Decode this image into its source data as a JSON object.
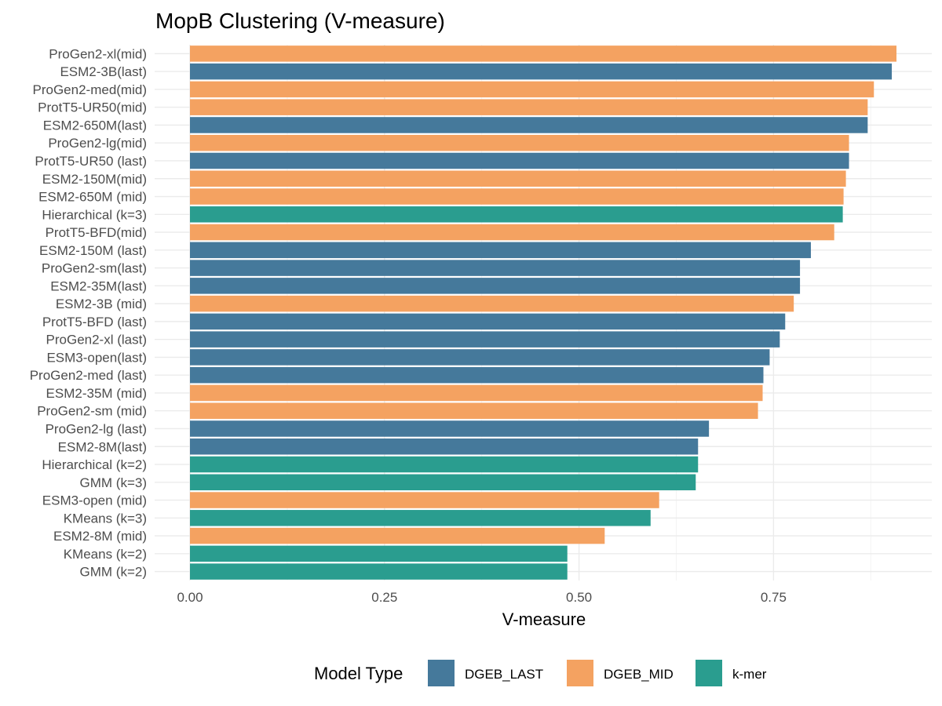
{
  "chart_data": {
    "type": "bar",
    "orientation": "horizontal",
    "title": "MopB Clustering (V-measure)",
    "xlabel": "V-measure",
    "ylabel": "",
    "xlim": [
      0,
      0.91
    ],
    "xticks": [
      0.0,
      0.25,
      0.5,
      0.75
    ],
    "xtick_labels": [
      "0.00",
      "0.25",
      "0.50",
      "0.75"
    ],
    "grid": true,
    "legend": {
      "title": "Model Type",
      "position": "bottom",
      "entries": [
        {
          "name": "DGEB_LAST",
          "color": "#45799b"
        },
        {
          "name": "DGEB_MID",
          "color": "#f4a261"
        },
        {
          "name": "k-mer",
          "color": "#2a9d8f"
        }
      ]
    },
    "bars": [
      {
        "label": "ProGen2-xl(mid)",
        "value": 0.908,
        "type": "DGEB_MID"
      },
      {
        "label": "ESM2-3B(last)",
        "value": 0.902,
        "type": "DGEB_LAST"
      },
      {
        "label": "ProGen2-med(mid)",
        "value": 0.879,
        "type": "DGEB_MID"
      },
      {
        "label": "ProtT5-UR50(mid)",
        "value": 0.871,
        "type": "DGEB_MID"
      },
      {
        "label": "ESM2-650M(last)",
        "value": 0.871,
        "type": "DGEB_LAST"
      },
      {
        "label": "ProGen2-lg(mid)",
        "value": 0.847,
        "type": "DGEB_MID"
      },
      {
        "label": "ProtT5-UR50 (last)",
        "value": 0.847,
        "type": "DGEB_LAST"
      },
      {
        "label": "ESM2-150M(mid)",
        "value": 0.843,
        "type": "DGEB_MID"
      },
      {
        "label": "ESM2-650M (mid)",
        "value": 0.84,
        "type": "DGEB_MID"
      },
      {
        "label": "Hierarchical (k=3)",
        "value": 0.839,
        "type": "k-mer"
      },
      {
        "label": "ProtT5-BFD(mid)",
        "value": 0.828,
        "type": "DGEB_MID"
      },
      {
        "label": "ESM2-150M (last)",
        "value": 0.798,
        "type": "DGEB_LAST"
      },
      {
        "label": "ProGen2-sm(last)",
        "value": 0.784,
        "type": "DGEB_LAST"
      },
      {
        "label": "ESM2-35M(last)",
        "value": 0.784,
        "type": "DGEB_LAST"
      },
      {
        "label": "ESM2-3B (mid)",
        "value": 0.776,
        "type": "DGEB_MID"
      },
      {
        "label": "ProtT5-BFD (last)",
        "value": 0.765,
        "type": "DGEB_LAST"
      },
      {
        "label": "ProGen2-xl (last)",
        "value": 0.758,
        "type": "DGEB_LAST"
      },
      {
        "label": "ESM3-open(last)",
        "value": 0.745,
        "type": "DGEB_LAST"
      },
      {
        "label": "ProGen2-med (last)",
        "value": 0.737,
        "type": "DGEB_LAST"
      },
      {
        "label": "ESM2-35M (mid)",
        "value": 0.736,
        "type": "DGEB_MID"
      },
      {
        "label": "ProGen2-sm (mid)",
        "value": 0.73,
        "type": "DGEB_MID"
      },
      {
        "label": "ProGen2-lg (last)",
        "value": 0.667,
        "type": "DGEB_LAST"
      },
      {
        "label": "ESM2-8M(last)",
        "value": 0.653,
        "type": "DGEB_LAST"
      },
      {
        "label": "Hierarchical (k=2)",
        "value": 0.653,
        "type": "k-mer"
      },
      {
        "label": "GMM (k=3)",
        "value": 0.65,
        "type": "k-mer"
      },
      {
        "label": "ESM3-open (mid)",
        "value": 0.603,
        "type": "DGEB_MID"
      },
      {
        "label": "KMeans (k=3)",
        "value": 0.592,
        "type": "k-mer"
      },
      {
        "label": "ESM2-8M (mid)",
        "value": 0.533,
        "type": "DGEB_MID"
      },
      {
        "label": "KMeans (k=2)",
        "value": 0.485,
        "type": "k-mer"
      },
      {
        "label": "GMM (k=2)",
        "value": 0.485,
        "type": "k-mer"
      }
    ]
  }
}
